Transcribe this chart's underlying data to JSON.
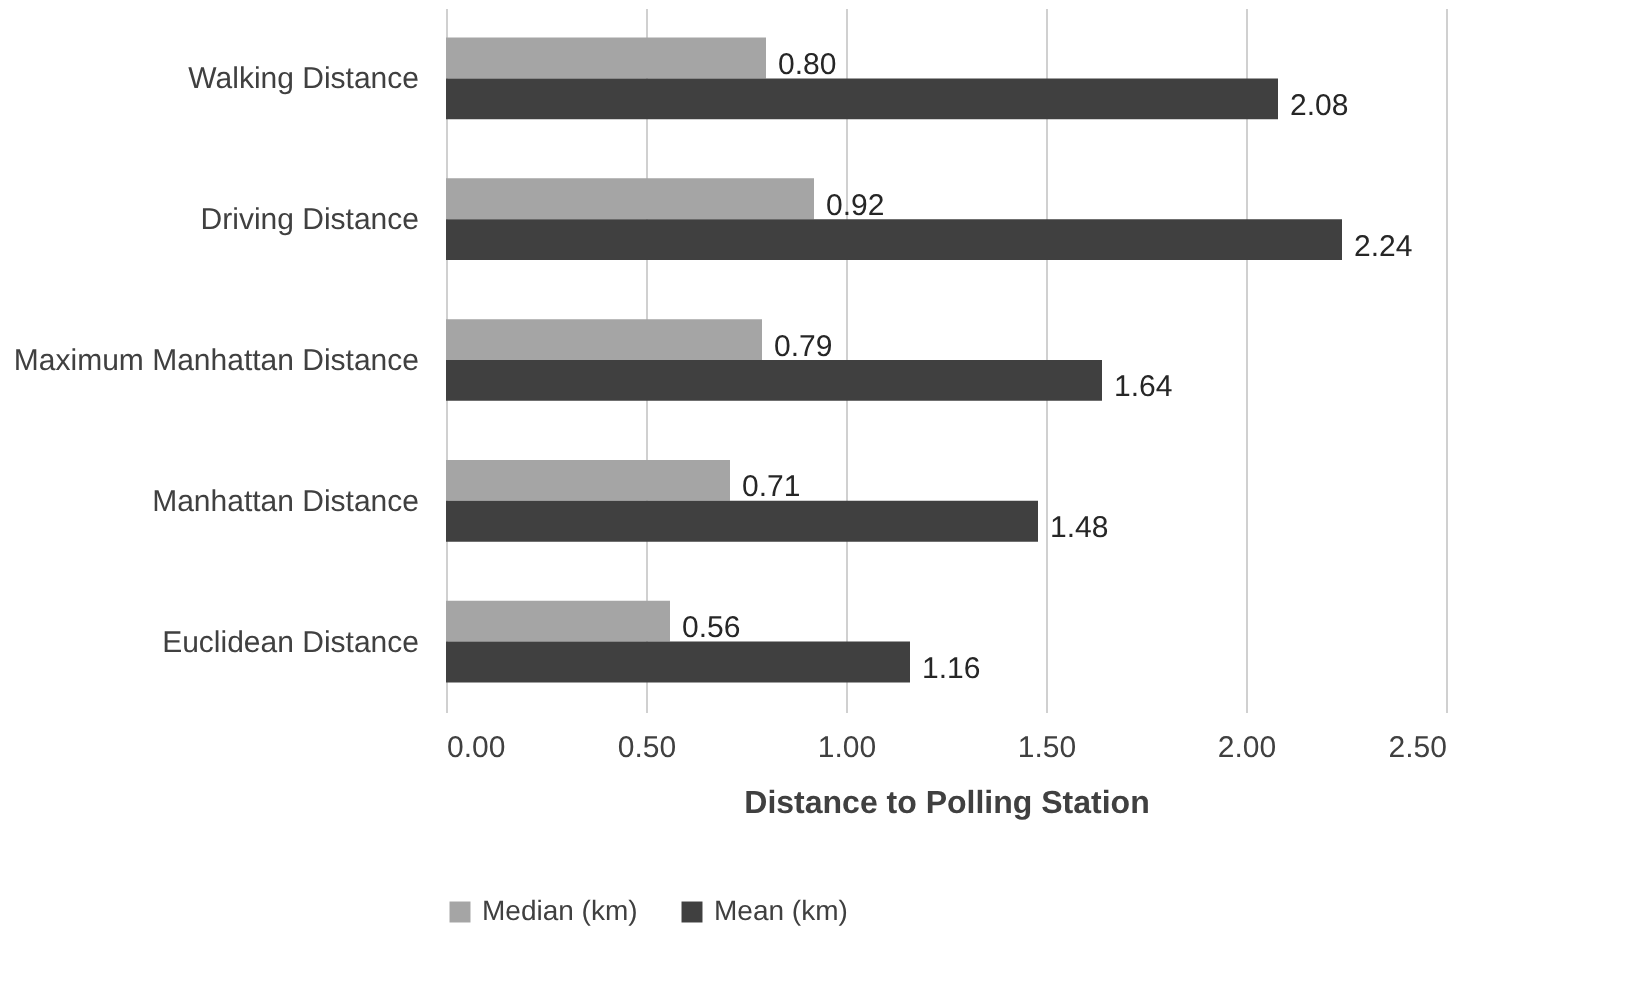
{
  "chart_data": {
    "type": "bar",
    "orientation": "horizontal",
    "xlabel": "Distance to Polling Station",
    "categories": [
      "Walking Distance",
      "Driving Distance",
      "Maximum Manhattan Distance",
      "Manhattan Distance",
      "Euclidean Distance"
    ],
    "series": [
      {
        "name": "Median (km)",
        "color": "#a5a5a5",
        "values": [
          0.8,
          0.92,
          0.79,
          0.71,
          0.56
        ],
        "value_labels": [
          "0.80",
          "0.92",
          "0.79",
          "0.71",
          "0.56"
        ]
      },
      {
        "name": "Mean (km)",
        "color": "#404040",
        "values": [
          2.08,
          2.24,
          1.64,
          1.48,
          1.16
        ],
        "value_labels": [
          "2.08",
          "2.24",
          "1.64",
          "1.48",
          "1.16"
        ]
      }
    ],
    "xlim": [
      0,
      2.5
    ],
    "xticks": [
      {
        "value": 0,
        "label": "0.00"
      },
      {
        "value": 0.5,
        "label": "0.50"
      },
      {
        "value": 1,
        "label": "1.00"
      },
      {
        "value": 1.5,
        "label": "1.50"
      },
      {
        "value": 2,
        "label": "2.00"
      },
      {
        "value": 2.5,
        "label": "2.50"
      }
    ],
    "grid": "x",
    "legend": "bottom"
  }
}
